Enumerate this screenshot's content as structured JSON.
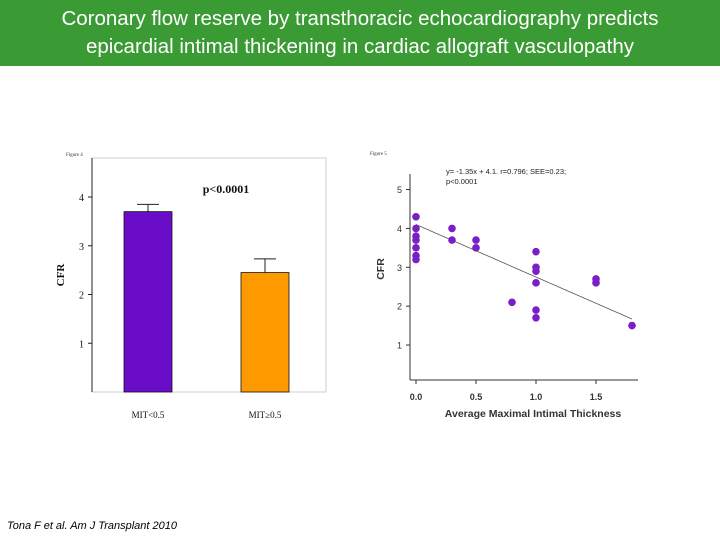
{
  "slide": {
    "title_line1": "Coronary flow reserve by transthoracic echocardiography predicts",
    "title_line2": "epicardial intimal thickening in cardiac allograft vasculopathy",
    "citation": "Tona F et al. Am J Transplant 2010",
    "title_bg": "#3a9a34"
  },
  "chart_data": [
    {
      "type": "bar",
      "corner_label": "Figure 4",
      "categories": [
        "MIT<0.5",
        "MIT≥0.5"
      ],
      "values": [
        3.7,
        2.45
      ],
      "errors": [
        0.15,
        0.28
      ],
      "colors": [
        "#6a0dc8",
        "#ff9900"
      ],
      "annotation": "p<0.0001",
      "ylabel": "CFR",
      "xlabel": "",
      "ylim": [
        0,
        4.8
      ],
      "yticks": [
        1,
        2,
        3,
        4
      ]
    },
    {
      "type": "scatter",
      "corner_label": "Figure 5",
      "equation": "y= -1.35x + 4.1. r=0.796; SEE=0.23; p<0.0001",
      "xlabel": "Average Maximal Intimal Thickness",
      "ylabel": "CFR",
      "xlim": [
        -0.05,
        1.85
      ],
      "ylim": [
        0.1,
        5.4
      ],
      "xticks": [
        0.0,
        0.5,
        1.0,
        1.5
      ],
      "xtick_labels": [
        "0.0",
        "0.5",
        "1.0",
        "1.5"
      ],
      "yticks": [
        1,
        2,
        3,
        4,
        5
      ],
      "point_color": "#7a1fc8",
      "points": [
        [
          0.0,
          4.3
        ],
        [
          0.0,
          4.0
        ],
        [
          0.0,
          3.8
        ],
        [
          0.0,
          3.7
        ],
        [
          0.0,
          3.5
        ],
        [
          0.0,
          3.3
        ],
        [
          0.0,
          3.2
        ],
        [
          0.3,
          4.0
        ],
        [
          0.3,
          3.7
        ],
        [
          0.5,
          3.7
        ],
        [
          0.5,
          3.5
        ],
        [
          0.8,
          2.1
        ],
        [
          1.0,
          3.4
        ],
        [
          1.0,
          3.0
        ],
        [
          1.0,
          2.9
        ],
        [
          1.0,
          2.6
        ],
        [
          1.0,
          1.9
        ],
        [
          1.0,
          1.7
        ],
        [
          1.5,
          2.7
        ],
        [
          1.5,
          2.6
        ],
        [
          1.8,
          1.5
        ]
      ],
      "regression": {
        "slope": -1.35,
        "intercept": 4.1,
        "x_range": [
          0.0,
          1.8
        ]
      }
    }
  ]
}
